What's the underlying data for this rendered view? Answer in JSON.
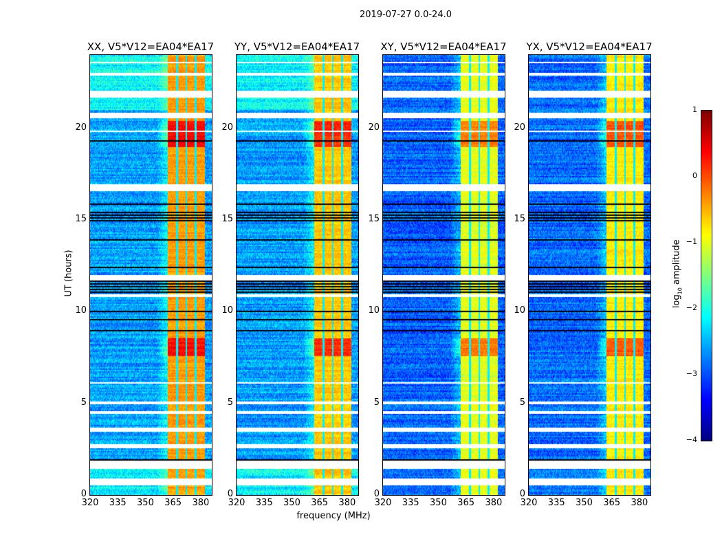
{
  "chart_data": {
    "type": "heatmap",
    "title": "2019-07-27 0.0-24.0",
    "xlabel": "frequency (MHz)",
    "ylabel": "UT (hours)",
    "xlim": [
      320,
      386
    ],
    "ylim": [
      0,
      24
    ],
    "xticks": [
      "320",
      "335",
      "350",
      "365",
      "380"
    ],
    "xtick_values": [
      320,
      335,
      350,
      365,
      380
    ],
    "yticks": [
      "0",
      "5",
      "10",
      "15",
      "20"
    ],
    "ytick_values": [
      0,
      5,
      10,
      15,
      20
    ],
    "colormap": "jet",
    "colorbar": {
      "label_main": "log",
      "label_sub": "10",
      "label_rest": " amplitude",
      "range": [
        -4,
        1
      ],
      "ticks": [
        "1",
        "0",
        "−1",
        "−2",
        "−3",
        "−4"
      ],
      "tick_values": [
        1,
        0,
        -1,
        -2,
        -3,
        -4
      ]
    },
    "band_MHz": [
      362,
      382
    ],
    "subband_gaps_MHz": [
      367,
      372,
      377
    ],
    "bright_epochs_hours": [
      [
        7.6,
        8.6
      ],
      [
        19.0,
        20.4
      ]
    ],
    "flagged_hours": [
      [
        0.55,
        0.95
      ],
      [
        1.45,
        1.9
      ],
      [
        2.6,
        2.8
      ],
      [
        3.5,
        3.7
      ],
      [
        4.5,
        4.6
      ],
      [
        5.0,
        5.12
      ],
      [
        6.1,
        6.2
      ],
      [
        10.85,
        10.95
      ],
      [
        11.75,
        12.0
      ],
      [
        16.65,
        17.0
      ],
      [
        19.8,
        19.95
      ],
      [
        20.55,
        20.9
      ],
      [
        21.7,
        22.05
      ],
      [
        22.95,
        23.05
      ],
      [
        23.55,
        23.65
      ]
    ],
    "dropout_hours": [
      [
        1.95,
        2.05
      ],
      [
        3.2,
        3.3
      ],
      [
        8.9,
        9.0
      ],
      [
        9.6,
        9.7
      ],
      [
        10.0,
        10.1
      ],
      [
        11.0,
        11.7
      ],
      [
        12.3,
        12.6
      ],
      [
        13.9,
        14.0
      ],
      [
        14.6,
        14.7
      ],
      [
        15.0,
        15.5
      ],
      [
        15.8,
        15.9
      ],
      [
        18.3,
        18.4
      ],
      [
        19.25,
        19.45
      ]
    ],
    "panels": [
      {
        "title": "XX, V5*V12=EA04*EA17",
        "background_log_amp": -2.6,
        "band_log_amp": -0.4
      },
      {
        "title": "YY, V5*V12=EA04*EA17",
        "background_log_amp": -2.6,
        "band_log_amp": -0.6
      },
      {
        "title": "XY, V5*V12=EA04*EA17",
        "background_log_amp": -2.9,
        "band_log_amp": -1.0
      },
      {
        "title": "YX, V5*V12=EA04*EA17",
        "background_log_amp": -2.85,
        "band_log_amp": -0.8
      }
    ]
  }
}
